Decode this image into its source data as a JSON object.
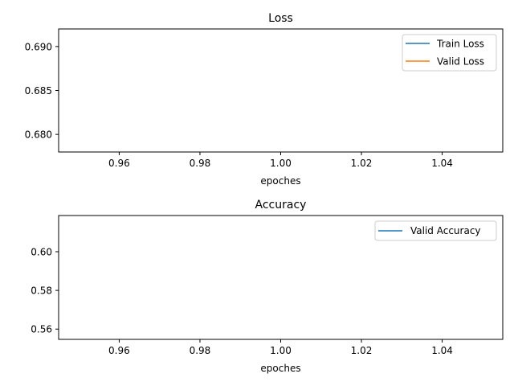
{
  "chart_data": [
    {
      "type": "line",
      "title": "Loss",
      "xlabel": "epoches",
      "ylabel": "",
      "xlim": [
        0.945,
        1.055
      ],
      "ylim": [
        0.678,
        0.692
      ],
      "xticks": [
        0.96,
        0.98,
        1.0,
        1.02,
        1.04
      ],
      "xtick_labels": [
        "0.96",
        "0.98",
        "1.00",
        "1.02",
        "1.04"
      ],
      "yticks": [
        0.68,
        0.685,
        0.69
      ],
      "ytick_labels": [
        "0.680",
        "0.685",
        "0.690"
      ],
      "grid": false,
      "legend_position": "upper right",
      "series": [
        {
          "name": "Train Loss",
          "color": "#1f77b4",
          "x": [],
          "y": []
        },
        {
          "name": "Valid Loss",
          "color": "#ff7f0e",
          "x": [],
          "y": []
        }
      ]
    },
    {
      "type": "line",
      "title": "Accuracy",
      "xlabel": "epoches",
      "ylabel": "",
      "xlim": [
        0.945,
        1.055
      ],
      "ylim": [
        0.5547,
        0.6187
      ],
      "xticks": [
        0.96,
        0.98,
        1.0,
        1.02,
        1.04
      ],
      "xtick_labels": [
        "0.96",
        "0.98",
        "1.00",
        "1.02",
        "1.04"
      ],
      "yticks": [
        0.56,
        0.58,
        0.6
      ],
      "ytick_labels": [
        "0.56",
        "0.58",
        "0.60"
      ],
      "grid": false,
      "legend_position": "upper right",
      "series": [
        {
          "name": "Valid Accuracy",
          "color": "#1f77b4",
          "x": [],
          "y": []
        }
      ]
    }
  ]
}
